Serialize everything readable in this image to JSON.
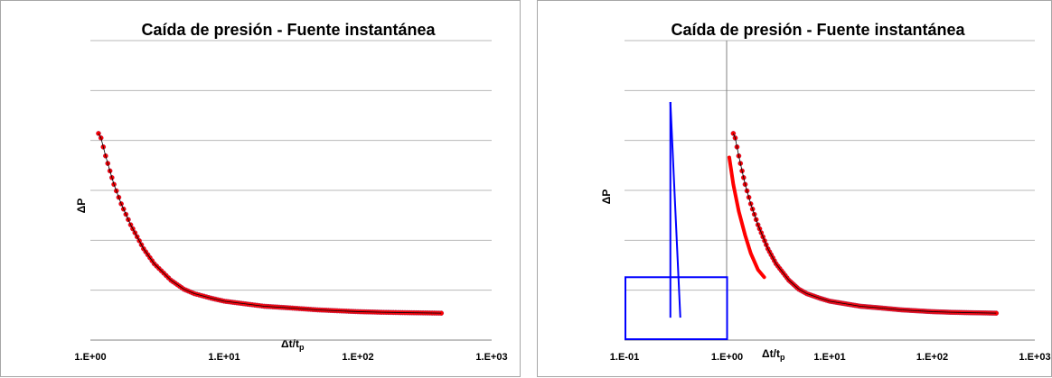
{
  "chart_data": [
    {
      "type": "scatter",
      "title": "Caída de presión - Fuente instantánea",
      "xlabel": "Δt/t",
      "xlabel_sub": "p",
      "ylabel": "ΔP",
      "x_scale": "log",
      "xlim": [
        1,
        1000
      ],
      "x_ticks": [
        "1.E+00",
        "1.E+01",
        "1.E+02",
        "1.E+03"
      ],
      "y_tick_labels": "none",
      "grid": "horizontal",
      "legend": "none",
      "series": [
        {
          "marker_color": "#ff0000",
          "line_color": "#000000",
          "x": [
            1.15,
            1.2,
            1.3,
            1.4,
            1.5,
            1.7,
            2.0,
            2.5,
            3.0,
            4.0,
            5.0,
            6.0,
            8.0,
            10,
            15,
            20,
            30,
            50,
            70,
            100,
            150,
            200,
            420
          ],
          "y": [
            0.69,
            0.675,
            0.615,
            0.565,
            0.52,
            0.455,
            0.385,
            0.305,
            0.255,
            0.2,
            0.17,
            0.155,
            0.14,
            0.13,
            0.12,
            0.113,
            0.108,
            0.101,
            0.098,
            0.095,
            0.093,
            0.092,
            0.09
          ]
        }
      ]
    },
    {
      "type": "scatter",
      "title": "Caída de presión - Fuente instantánea",
      "xlabel": "Δt/t",
      "xlabel_sub": "p",
      "ylabel": "ΔP",
      "x_scale": "log",
      "xlim": [
        0.1,
        1000
      ],
      "x_ticks": [
        "1.E-01",
        "1.E+00",
        "1.E+01",
        "1.E+02",
        "1.E+03"
      ],
      "y_tick_labels": "none",
      "grid": "horizontal",
      "legend": "none",
      "series": [
        {
          "marker_color": "#ff0000",
          "line_color": "#000000",
          "x": [
            1.15,
            1.2,
            1.3,
            1.4,
            1.5,
            1.7,
            2.0,
            2.5,
            3.0,
            4.0,
            5.0,
            6.0,
            8.0,
            10,
            15,
            20,
            30,
            50,
            70,
            100,
            150,
            200,
            420
          ],
          "y": [
            0.69,
            0.675,
            0.615,
            0.565,
            0.52,
            0.455,
            0.385,
            0.305,
            0.255,
            0.2,
            0.17,
            0.155,
            0.14,
            0.13,
            0.12,
            0.113,
            0.108,
            0.101,
            0.098,
            0.095,
            0.093,
            0.092,
            0.09
          ]
        },
        {
          "line_color": "#ff0000",
          "x": [
            1.05,
            1.15,
            1.3,
            1.5,
            1.7,
            2.0,
            2.3
          ],
          "y": [
            0.61,
            0.52,
            0.43,
            0.35,
            0.29,
            0.235,
            0.21
          ]
        }
      ],
      "annotations": {
        "color": "#0000ff",
        "rectangle": {
          "x": [
            0.1,
            1.0
          ],
          "y": [
            0,
            0.21
          ]
        },
        "line_1": {
          "x": [
            0.28,
            0.28
          ],
          "y": [
            0.795,
            0.075
          ]
        },
        "line_2": {
          "x": [
            0.28,
            0.35
          ],
          "y": [
            0.795,
            0.075
          ]
        }
      }
    }
  ]
}
